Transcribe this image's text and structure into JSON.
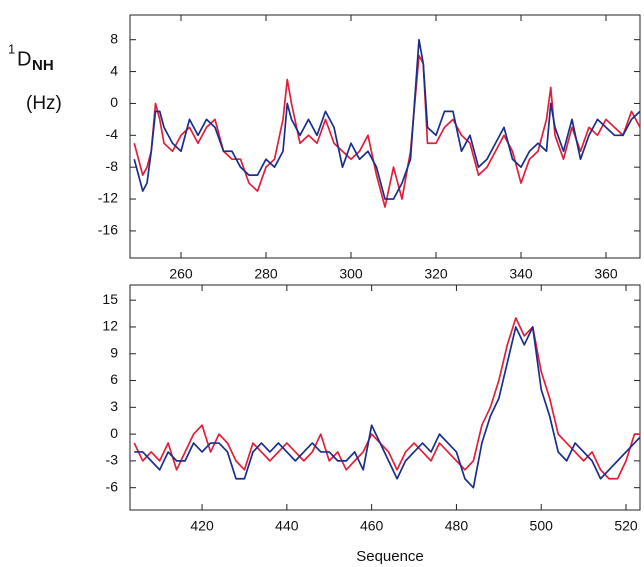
{
  "chart_data": [
    {
      "type": "line",
      "ylabel": {
        "superscript": "1",
        "main": "D",
        "subscript": "NH",
        "unit": "(Hz)"
      },
      "x": [
        249,
        250,
        251,
        252,
        253,
        254,
        255,
        256,
        258,
        260,
        262,
        264,
        266,
        268,
        270,
        272,
        274,
        276,
        278,
        280,
        282,
        284,
        285,
        286,
        288,
        290,
        292,
        294,
        296,
        298,
        300,
        302,
        304,
        306,
        308,
        310,
        312,
        314,
        316,
        317,
        318,
        320,
        322,
        324,
        326,
        328,
        330,
        332,
        334,
        336,
        338,
        340,
        342,
        344,
        346,
        347,
        348,
        350,
        352,
        354,
        356,
        358,
        360,
        362,
        364,
        366,
        368
      ],
      "series": [
        {
          "color": "#e0203a",
          "values": [
            -5,
            -7,
            -9,
            -8,
            -6,
            0,
            -2,
            -5,
            -6,
            -4,
            -3,
            -5,
            -3,
            -2,
            -6,
            -7,
            -7,
            -10,
            -11,
            -8,
            -7,
            -2,
            3,
            0,
            -5,
            -4,
            -5,
            -2,
            -5,
            -6,
            -7,
            -6,
            -4,
            -9,
            -13,
            -8,
            -12,
            -6,
            6,
            5,
            -5,
            -5,
            -3,
            -2,
            -4,
            -5,
            -9,
            -8,
            -6,
            -4,
            -6,
            -10,
            -7,
            -6,
            -2,
            2,
            -4,
            -7,
            -3,
            -6,
            -3,
            -4,
            -2,
            -3,
            -4,
            -1,
            -3
          ]
        },
        {
          "color": "#1a2f8a",
          "values": [
            -7,
            -9,
            -11,
            -10,
            -6,
            -1,
            -1,
            -3,
            -5,
            -6,
            -2,
            -4,
            -2,
            -3,
            -6,
            -6,
            -8,
            -9,
            -9,
            -7,
            -8,
            -6,
            0,
            -2,
            -4,
            -2,
            -4,
            -1,
            -3,
            -8,
            -5,
            -7,
            -6,
            -8,
            -12,
            -12,
            -10,
            -7,
            8,
            5,
            -3,
            -4,
            -1,
            -1,
            -6,
            -4,
            -8,
            -7,
            -5,
            -3,
            -7,
            -8,
            -6,
            -5,
            -6,
            0,
            -3,
            -6,
            -2,
            -7,
            -4,
            -2,
            -3,
            -4,
            -4,
            -2,
            -1
          ]
        }
      ],
      "xlim": [
        248,
        368
      ],
      "xticks": [
        260,
        280,
        300,
        320,
        340,
        360
      ],
      "ylim": [
        -19.4,
        11.1
      ],
      "yticks": [
        8,
        4,
        0,
        -4,
        -8,
        -12,
        -16
      ]
    },
    {
      "type": "line",
      "xlabel": "Sequence",
      "x": [
        404,
        406,
        408,
        410,
        412,
        414,
        416,
        418,
        420,
        422,
        424,
        426,
        428,
        430,
        432,
        434,
        436,
        438,
        440,
        442,
        444,
        446,
        448,
        450,
        452,
        454,
        456,
        458,
        460,
        462,
        464,
        466,
        468,
        470,
        472,
        474,
        476,
        478,
        480,
        482,
        484,
        486,
        488,
        490,
        492,
        494,
        496,
        498,
        500,
        502,
        504,
        506,
        508,
        510,
        512,
        514,
        516,
        518,
        520,
        522,
        524
      ],
      "series": [
        {
          "color": "#e0203a",
          "values": [
            -1,
            -3,
            -2,
            -3,
            -1,
            -4,
            -2,
            0,
            1,
            -2,
            0,
            -1,
            -3,
            -4,
            -1,
            -2,
            -3,
            -2,
            -1,
            -2,
            -3,
            -2,
            0,
            -3,
            -2,
            -4,
            -3,
            -2,
            0,
            -1,
            -2,
            -4,
            -2,
            -1,
            -2,
            -3,
            -1,
            -2,
            -3,
            -4,
            -3,
            1,
            3,
            6,
            10,
            13,
            11,
            12,
            7,
            4,
            0,
            -1,
            -2,
            -3,
            -2,
            -4,
            -5,
            -5,
            -3,
            0,
            0
          ]
        },
        {
          "color": "#1a2f8a",
          "values": [
            -2,
            -2,
            -3,
            -4,
            -2,
            -3,
            -3,
            -1,
            -2,
            -1,
            -1,
            -2,
            -5,
            -5,
            -2,
            -1,
            -2,
            -1,
            -2,
            -3,
            -2,
            -1,
            -2,
            -2,
            -3,
            -3,
            -2,
            -4,
            1,
            -1,
            -3,
            -5,
            -3,
            -2,
            -1,
            -2,
            0,
            -1,
            -2,
            -5,
            -6,
            -1,
            2,
            4,
            8,
            12,
            10,
            12,
            5,
            2,
            -2,
            -3,
            -1,
            -2,
            -3,
            -5,
            -4,
            -3,
            -2,
            -1,
            0
          ]
        }
      ],
      "xlim": [
        403,
        523.3
      ],
      "xticks": [
        420,
        440,
        460,
        480,
        500,
        520
      ],
      "ylim": [
        -8.5,
        16.7
      ],
      "yticks": [
        15,
        12,
        9,
        6,
        3,
        0,
        -3,
        -6
      ]
    }
  ]
}
